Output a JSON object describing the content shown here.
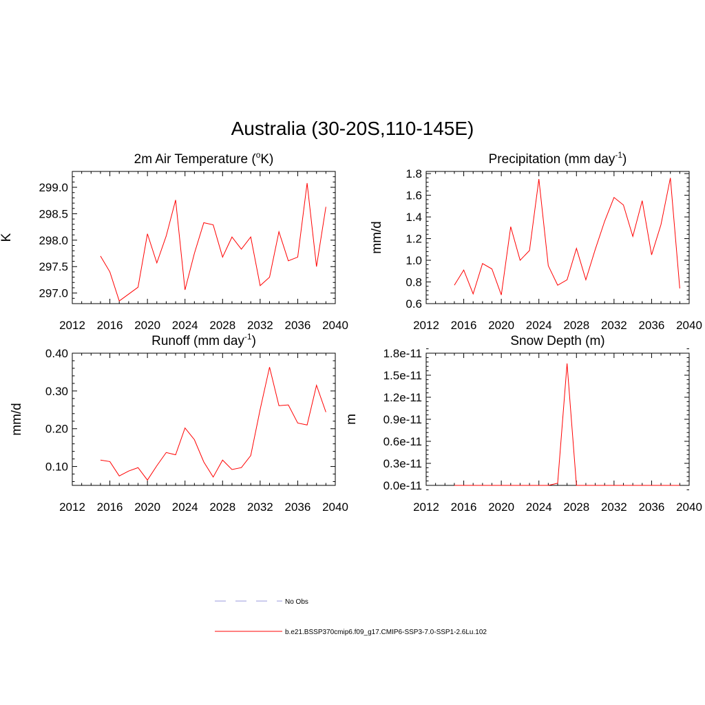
{
  "figure": {
    "title": "Australia (30-20S,110-145E)"
  },
  "legend": {
    "items": [
      {
        "label": "No Obs",
        "color": "#9999dd",
        "dash": true
      },
      {
        "label": "b.e21.BSSP370cmip6.f09_g17.CMIP6-SSP3-7.0-SSP1-2.6Lu.102",
        "color": "#ff0000",
        "dash": false
      }
    ]
  },
  "chart_data": [
    {
      "type": "line",
      "title_main": "2m Air Temperature (",
      "title_sup": "o",
      "title_end": "K)",
      "ylabel": "K",
      "xlim": [
        2012,
        2040
      ],
      "ylim": [
        296.8,
        299.3
      ],
      "xticks": [
        2012,
        2016,
        2020,
        2024,
        2028,
        2032,
        2036,
        2040
      ],
      "yticks": [
        297.0,
        297.5,
        298.0,
        298.5,
        299.0
      ],
      "ytick_labels": [
        "297.0",
        "297.5",
        "298.0",
        "298.5",
        "299.0"
      ],
      "x": [
        2015,
        2016,
        2017,
        2018,
        2019,
        2020,
        2021,
        2022,
        2023,
        2024,
        2025,
        2026,
        2027,
        2028,
        2029,
        2030,
        2031,
        2032,
        2033,
        2034,
        2035,
        2036,
        2037,
        2038,
        2039
      ],
      "series": [
        {
          "color": "#ff0000",
          "values": [
            297.7,
            297.4,
            296.85,
            296.98,
            297.11,
            298.12,
            297.57,
            298.08,
            298.76,
            297.06,
            297.75,
            298.33,
            298.29,
            297.68,
            298.06,
            297.83,
            298.06,
            297.14,
            297.3,
            298.16,
            297.61,
            297.68,
            299.08,
            297.5,
            298.63
          ]
        }
      ]
    },
    {
      "type": "line",
      "title_main": "Precipitation (mm day",
      "title_sup": "-1",
      "title_end": ")",
      "ylabel": "mm/d",
      "xlim": [
        2012,
        2040
      ],
      "ylim": [
        0.6,
        1.82
      ],
      "xticks": [
        2012,
        2016,
        2020,
        2024,
        2028,
        2032,
        2036,
        2040
      ],
      "yticks": [
        0.6,
        0.8,
        1.0,
        1.2,
        1.4,
        1.6,
        1.8
      ],
      "ytick_labels": [
        "0.6",
        "0.8",
        "1.0",
        "1.2",
        "1.4",
        "1.6",
        "1.8"
      ],
      "x": [
        2015,
        2016,
        2017,
        2018,
        2019,
        2020,
        2021,
        2022,
        2023,
        2024,
        2025,
        2026,
        2027,
        2028,
        2029,
        2030,
        2031,
        2032,
        2033,
        2034,
        2035,
        2036,
        2037,
        2038,
        2039
      ],
      "series": [
        {
          "color": "#ff0000",
          "values": [
            0.77,
            0.91,
            0.69,
            0.97,
            0.92,
            0.68,
            1.31,
            1.0,
            1.09,
            1.75,
            0.95,
            0.77,
            0.82,
            1.11,
            0.82,
            1.1,
            1.36,
            1.58,
            1.51,
            1.22,
            1.55,
            1.05,
            1.33,
            1.76,
            0.74
          ]
        }
      ]
    },
    {
      "type": "line",
      "title_main": "Runoff (mm day",
      "title_sup": "-1",
      "title_end": ")",
      "ylabel": "mm/d",
      "xlim": [
        2012,
        2040
      ],
      "ylim": [
        0.05,
        0.4
      ],
      "xticks": [
        2012,
        2016,
        2020,
        2024,
        2028,
        2032,
        2036,
        2040
      ],
      "yticks": [
        0.1,
        0.2,
        0.3,
        0.4
      ],
      "ytick_labels": [
        "0.10",
        "0.20",
        "0.30",
        "0.40"
      ],
      "x": [
        2015,
        2016,
        2017,
        2018,
        2019,
        2020,
        2021,
        2022,
        2023,
        2024,
        2025,
        2026,
        2027,
        2028,
        2029,
        2030,
        2031,
        2032,
        2033,
        2034,
        2035,
        2036,
        2037,
        2038,
        2039
      ],
      "series": [
        {
          "color": "#ff0000",
          "values": [
            0.117,
            0.113,
            0.075,
            0.088,
            0.097,
            0.064,
            0.102,
            0.137,
            0.131,
            0.202,
            0.171,
            0.112,
            0.072,
            0.117,
            0.092,
            0.097,
            0.129,
            0.251,
            0.363,
            0.261,
            0.263,
            0.215,
            0.21,
            0.315,
            0.244
          ]
        }
      ]
    },
    {
      "type": "line",
      "title_main": "Snow Depth (m)",
      "title_sup": "",
      "title_end": "",
      "ylabel": "m",
      "xlim": [
        2012,
        2040
      ],
      "ylim": [
        0.0,
        1.8e-11
      ],
      "xticks": [
        2012,
        2016,
        2020,
        2024,
        2028,
        2032,
        2036,
        2040
      ],
      "yticks": [
        0.0,
        3e-12,
        6e-12,
        9e-12,
        1.2e-11,
        1.5e-11,
        1.8e-11
      ],
      "ytick_labels": [
        "0.0e-11",
        "0.3e-11",
        "0.6e-11",
        "0.9e-11",
        "1.2e-11",
        "1.5e-11",
        "1.8e-11"
      ],
      "x": [
        2015,
        2016,
        2017,
        2018,
        2019,
        2020,
        2021,
        2022,
        2023,
        2024,
        2025,
        2026,
        2027,
        2028,
        2029,
        2030,
        2031,
        2032,
        2033,
        2034,
        2035,
        2036,
        2037,
        2038,
        2039
      ],
      "series": [
        {
          "color": "#ff0000",
          "values": [
            0,
            0,
            0,
            0,
            0,
            0,
            0,
            0,
            0,
            0,
            0,
            3e-13,
            1.66e-11,
            0,
            0,
            0,
            0,
            0,
            0,
            0,
            0,
            0,
            0,
            0,
            0
          ]
        }
      ]
    }
  ]
}
